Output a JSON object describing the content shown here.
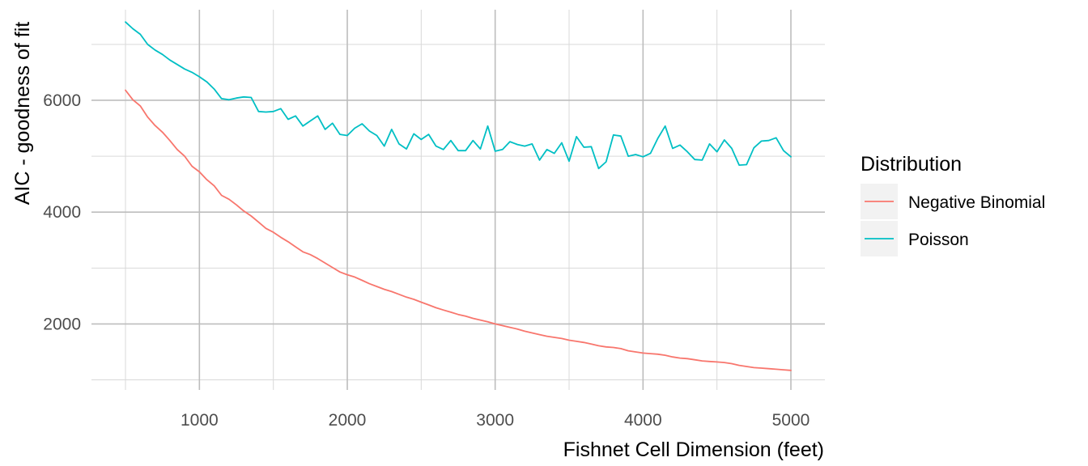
{
  "chart_data": {
    "type": "line",
    "xlabel": "Fishnet Cell Dimension (feet)",
    "ylabel": "AIC - goodness of fit",
    "xlim": [
      270,
      5230
    ],
    "ylim": [
      820,
      7620
    ],
    "x_ticks": [
      1000,
      2000,
      3000,
      4000,
      5000
    ],
    "y_ticks": [
      2000,
      4000,
      6000
    ],
    "x_tick_labels": [
      "1000",
      "2000",
      "3000",
      "4000",
      "5000"
    ],
    "y_tick_labels": [
      "2000",
      "4000",
      "6000"
    ],
    "grid": true,
    "legend": {
      "title": "Distribution",
      "placement": "right"
    },
    "series": [
      {
        "name": "Negative Binomial",
        "color": "#F8766D",
        "x": [
          500,
          550,
          600,
          650,
          700,
          750,
          800,
          850,
          900,
          950,
          1000,
          1050,
          1100,
          1150,
          1200,
          1250,
          1300,
          1350,
          1400,
          1450,
          1500,
          1550,
          1600,
          1650,
          1700,
          1750,
          1800,
          1850,
          1900,
          1950,
          2000,
          2050,
          2100,
          2150,
          2200,
          2250,
          2300,
          2350,
          2400,
          2450,
          2500,
          2550,
          2600,
          2650,
          2700,
          2750,
          2800,
          2850,
          2900,
          2950,
          3000,
          3050,
          3100,
          3150,
          3200,
          3250,
          3300,
          3350,
          3400,
          3450,
          3500,
          3550,
          3600,
          3650,
          3700,
          3750,
          3800,
          3850,
          3900,
          3950,
          4000,
          4050,
          4100,
          4150,
          4200,
          4250,
          4300,
          4350,
          4400,
          4450,
          4500,
          4550,
          4600,
          4650,
          4700,
          4750,
          4800,
          4850,
          4900,
          4950,
          5000
        ],
        "values": [
          6180,
          6010,
          5900,
          5700,
          5550,
          5430,
          5280,
          5120,
          5000,
          4820,
          4720,
          4580,
          4470,
          4300,
          4230,
          4130,
          4020,
          3930,
          3820,
          3710,
          3640,
          3550,
          3470,
          3380,
          3290,
          3240,
          3170,
          3090,
          3010,
          2930,
          2880,
          2840,
          2780,
          2720,
          2670,
          2620,
          2580,
          2530,
          2480,
          2440,
          2390,
          2340,
          2290,
          2250,
          2210,
          2170,
          2140,
          2100,
          2070,
          2040,
          2000,
          1970,
          1940,
          1910,
          1870,
          1840,
          1810,
          1780,
          1760,
          1740,
          1710,
          1690,
          1670,
          1640,
          1610,
          1590,
          1580,
          1560,
          1520,
          1500,
          1480,
          1470,
          1460,
          1440,
          1410,
          1390,
          1380,
          1360,
          1340,
          1330,
          1320,
          1310,
          1290,
          1260,
          1240,
          1220,
          1210,
          1200,
          1190,
          1180,
          1170
        ]
      },
      {
        "name": "Poisson",
        "color": "#00BFC4",
        "x": [
          500,
          550,
          600,
          650,
          700,
          750,
          800,
          850,
          900,
          950,
          1000,
          1050,
          1100,
          1150,
          1200,
          1250,
          1300,
          1350,
          1400,
          1450,
          1500,
          1550,
          1600,
          1650,
          1700,
          1750,
          1800,
          1850,
          1900,
          1950,
          2000,
          2050,
          2100,
          2150,
          2200,
          2250,
          2300,
          2350,
          2400,
          2450,
          2500,
          2550,
          2600,
          2650,
          2700,
          2750,
          2800,
          2850,
          2900,
          2950,
          3000,
          3050,
          3100,
          3150,
          3200,
          3250,
          3300,
          3350,
          3400,
          3450,
          3500,
          3550,
          3600,
          3650,
          3700,
          3750,
          3800,
          3850,
          3900,
          3950,
          4000,
          4050,
          4100,
          4150,
          4200,
          4250,
          4300,
          4350,
          4400,
          4450,
          4500,
          4550,
          4600,
          4650,
          4700,
          4750,
          4800,
          4850,
          4900,
          4950,
          5000
        ],
        "values": [
          7400,
          7280,
          7180,
          7000,
          6900,
          6820,
          6720,
          6640,
          6560,
          6500,
          6420,
          6330,
          6200,
          6030,
          6010,
          6040,
          6060,
          6050,
          5800,
          5790,
          5800,
          5850,
          5660,
          5720,
          5540,
          5630,
          5720,
          5480,
          5590,
          5390,
          5370,
          5500,
          5580,
          5450,
          5370,
          5180,
          5480,
          5220,
          5130,
          5400,
          5300,
          5390,
          5180,
          5120,
          5280,
          5100,
          5100,
          5280,
          5130,
          5540,
          5090,
          5120,
          5260,
          5210,
          5180,
          5220,
          4930,
          5120,
          5050,
          5240,
          4910,
          5350,
          5160,
          5170,
          4780,
          4900,
          5380,
          5360,
          5000,
          5030,
          4990,
          5050,
          5320,
          5540,
          5140,
          5200,
          5080,
          4940,
          4930,
          5220,
          5080,
          5290,
          5140,
          4840,
          4850,
          5150,
          5270,
          5280,
          5330,
          5100,
          4990
        ]
      }
    ]
  }
}
